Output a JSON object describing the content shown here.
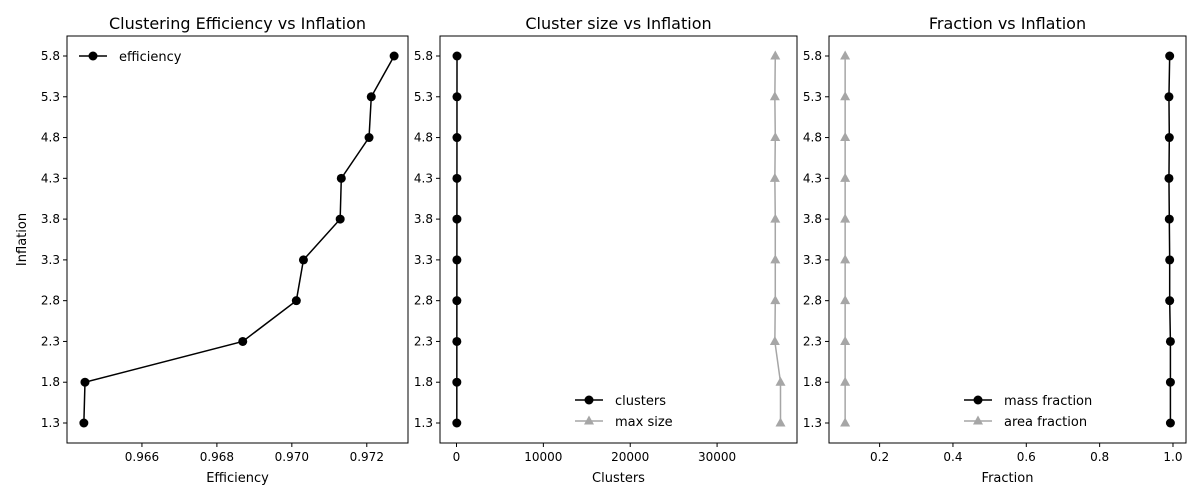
{
  "chart_data": [
    {
      "type": "line",
      "title": "Clustering Efficiency vs Inflation",
      "xlabel": "Efficiency",
      "ylabel": "Inflation",
      "xlim": [
        0.964,
        0.9731
      ],
      "y_categories": [
        "1.3",
        "1.8",
        "2.3",
        "2.8",
        "3.3",
        "3.8",
        "4.3",
        "4.8",
        "5.3",
        "5.8"
      ],
      "xticks": [
        {
          "value": 0.966,
          "label": "0.966"
        },
        {
          "value": 0.968,
          "label": "0.968"
        },
        {
          "value": 0.97,
          "label": "0.970"
        },
        {
          "value": 0.972,
          "label": "0.972"
        }
      ],
      "legend": {
        "position": "upper-left"
      },
      "series": [
        {
          "name": "efficiency",
          "color": "#000000",
          "marker": "circle",
          "values": [
            0.96445,
            0.96448,
            0.96869,
            0.97012,
            0.97031,
            0.97129,
            0.97132,
            0.97206,
            0.97212,
            0.97273
          ]
        }
      ]
    },
    {
      "type": "line",
      "title": "Cluster size vs Inflation",
      "xlabel": "Clusters",
      "ylabel": "",
      "xlim": [
        -1900,
        39200
      ],
      "y_categories": [
        "1.3",
        "1.8",
        "2.3",
        "2.8",
        "3.3",
        "3.8",
        "4.3",
        "4.8",
        "5.3",
        "5.8"
      ],
      "xticks": [
        {
          "value": 0,
          "label": "0"
        },
        {
          "value": 10000,
          "label": "10000"
        },
        {
          "value": 20000,
          "label": "20000"
        },
        {
          "value": 30000,
          "label": "30000"
        }
      ],
      "legend": {
        "position": "lower-center"
      },
      "series": [
        {
          "name": "clusters",
          "color": "#000000",
          "marker": "circle",
          "values": [
            35,
            38,
            40,
            42,
            45,
            48,
            50,
            52,
            55,
            58
          ]
        },
        {
          "name": "max size",
          "color": "#a6a6a6",
          "marker": "triangle",
          "values": [
            37300,
            37300,
            36650,
            36700,
            36700,
            36700,
            36650,
            36700,
            36650,
            36700
          ]
        }
      ]
    },
    {
      "type": "line",
      "title": "Fraction vs Inflation",
      "xlabel": "Fraction",
      "ylabel": "",
      "xlim": [
        0.062,
        1.0355
      ],
      "y_categories": [
        "1.3",
        "1.8",
        "2.3",
        "2.8",
        "3.3",
        "3.8",
        "4.3",
        "4.8",
        "5.3",
        "5.8"
      ],
      "xticks": [
        {
          "value": 0.2,
          "label": "0.2"
        },
        {
          "value": 0.4,
          "label": "0.4"
        },
        {
          "value": 0.6,
          "label": "0.6"
        },
        {
          "value": 0.8,
          "label": "0.8"
        },
        {
          "value": 1.0,
          "label": "1.0"
        }
      ],
      "legend": {
        "position": "lower-center"
      },
      "series": [
        {
          "name": "mass fraction",
          "color": "#000000",
          "marker": "circle",
          "values": [
            0.993,
            0.993,
            0.993,
            0.991,
            0.991,
            0.99,
            0.989,
            0.99,
            0.989,
            0.991
          ]
        },
        {
          "name": "area fraction",
          "color": "#a6a6a6",
          "marker": "triangle",
          "values": [
            0.106,
            0.106,
            0.106,
            0.106,
            0.106,
            0.106,
            0.106,
            0.106,
            0.106,
            0.106
          ]
        }
      ]
    }
  ]
}
